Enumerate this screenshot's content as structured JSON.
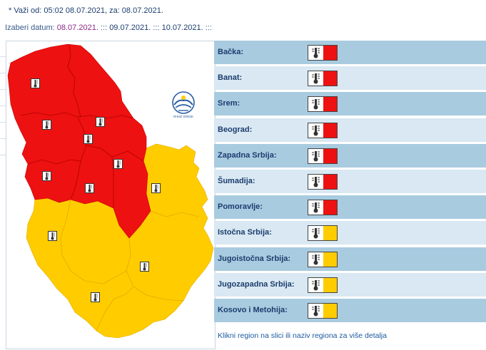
{
  "header": {
    "validity_text": "* Važi od: 05:02 08.07.2021, za: 08.07.2021.",
    "choose_date_label": "Izaberi datum:",
    "dates": [
      "08.07.2021.",
      "09.07.2021.",
      "10.07.2021."
    ],
    "separator": ":::"
  },
  "colors": {
    "red": "#ee1111",
    "yellow": "#ffcc00",
    "row_dark": "#a9cbe0",
    "row_light": "#d9e8f2"
  },
  "map": {
    "logo_text": "RHMZ SRBIJE",
    "icon": "thermometer-icon"
  },
  "regions": [
    {
      "name": "Bačka:",
      "level": "red"
    },
    {
      "name": "Banat:",
      "level": "red"
    },
    {
      "name": "Srem:",
      "level": "red"
    },
    {
      "name": "Beograd:",
      "level": "red"
    },
    {
      "name": "Zapadna Srbija:",
      "level": "red"
    },
    {
      "name": "Šumadija:",
      "level": "red"
    },
    {
      "name": "Pomoravlje:",
      "level": "red"
    },
    {
      "name": "Istočna Srbija:",
      "level": "yellow"
    },
    {
      "name": "Jugoistočna Srbija:",
      "level": "yellow"
    },
    {
      "name": "Jugozapadna Srbija:",
      "level": "yellow"
    },
    {
      "name": "Kosovo i Metohija:",
      "level": "yellow"
    }
  ],
  "footer_note": "Klikni region na slici ili naziv regiona za više detalja"
}
